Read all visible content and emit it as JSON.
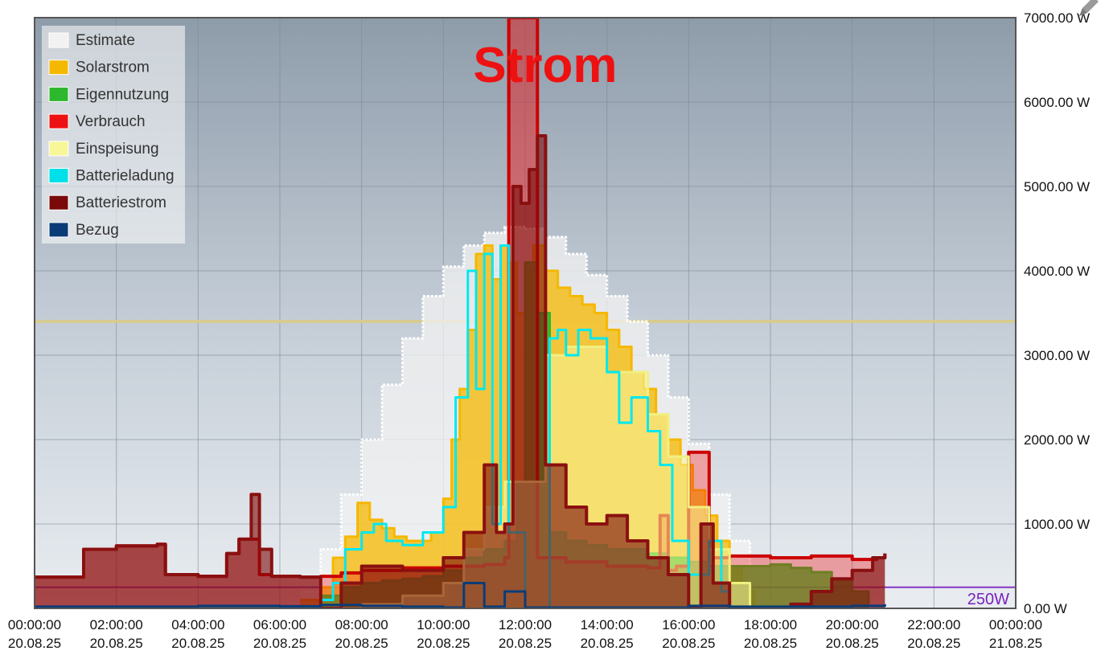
{
  "chart_data": {
    "type": "area",
    "title": "Strom",
    "title_color": "#ee1111",
    "xlabel": "",
    "ylabel": "",
    "ylim": [
      0,
      7000
    ],
    "xlim": [
      0,
      24
    ],
    "grid": true,
    "legend_position": "top-left",
    "y_ticks": [
      "0.00 W",
      "1000.00 W",
      "2000.00 W",
      "3000.00 W",
      "4000.00 W",
      "5000.00 W",
      "6000.00 W",
      "7000.00 W"
    ],
    "y_tick_values": [
      0,
      1000,
      2000,
      3000,
      4000,
      5000,
      6000,
      7000
    ],
    "x_ticks": [
      {
        "time": "00:00:00",
        "date": "20.08.25"
      },
      {
        "time": "02:00:00",
        "date": "20.08.25"
      },
      {
        "time": "04:00:00",
        "date": "20.08.25"
      },
      {
        "time": "06:00:00",
        "date": "20.08.25"
      },
      {
        "time": "08:00:00",
        "date": "20.08.25"
      },
      {
        "time": "10:00:00",
        "date": "20.08.25"
      },
      {
        "time": "12:00:00",
        "date": "20.08.25"
      },
      {
        "time": "14:00:00",
        "date": "20.08.25"
      },
      {
        "time": "16:00:00",
        "date": "20.08.25"
      },
      {
        "time": "18:00:00",
        "date": "20.08.25"
      },
      {
        "time": "20:00:00",
        "date": "20.08.25"
      },
      {
        "time": "22:00:00",
        "date": "20.08.25"
      },
      {
        "time": "00:00:00",
        "date": "21.08.25"
      }
    ],
    "reference_lines": [
      {
        "label": "250W",
        "value": 250,
        "color": "#7a22c0"
      },
      {
        "label": "",
        "value": 3400,
        "color": "#d8cc8a"
      }
    ],
    "highlight_band": {
      "from": 11.55,
      "to": 12.3,
      "color": "#ee1111"
    },
    "series": [
      {
        "name": "Estimate",
        "color": "#f2f2f2",
        "stroke": "#ffffff",
        "x": [
          6.5,
          7.0,
          7.5,
          8.0,
          8.5,
          9.0,
          9.5,
          10.0,
          10.5,
          11.0,
          11.5,
          12.0,
          12.5,
          13.0,
          13.5,
          14.0,
          14.5,
          15.0,
          15.5,
          16.0,
          16.5,
          17.0,
          17.5
        ],
        "y": [
          200,
          700,
          1350,
          2000,
          2650,
          3200,
          3700,
          4050,
          4300,
          4450,
          4520,
          4500,
          4400,
          4200,
          3950,
          3700,
          3400,
          3000,
          2500,
          1950,
          1350,
          800,
          250
        ]
      },
      {
        "name": "Solarstrom",
        "color": "#f5b800",
        "stroke": "#f5b800",
        "x": [
          6.5,
          7.0,
          7.3,
          7.6,
          7.9,
          8.2,
          8.5,
          8.8,
          9.1,
          9.4,
          9.7,
          10.0,
          10.2,
          10.4,
          10.6,
          10.8,
          11.0,
          11.2,
          11.4,
          11.6,
          11.8,
          12.0,
          12.2,
          12.5,
          12.8,
          13.1,
          13.4,
          13.7,
          14.0,
          14.3,
          14.6,
          14.9,
          15.2,
          15.5,
          15.8,
          16.1,
          16.4,
          16.7,
          17.0,
          17.3,
          17.6
        ],
        "y": [
          100,
          250,
          600,
          850,
          1250,
          1050,
          950,
          850,
          800,
          800,
          900,
          1300,
          2000,
          2600,
          3300,
          4200,
          4300,
          3900,
          4300,
          4100,
          3500,
          4000,
          4300,
          4000,
          3800,
          3700,
          3600,
          3500,
          3300,
          3100,
          2800,
          2600,
          2300,
          2000,
          1700,
          1400,
          1100,
          800,
          500,
          200,
          0
        ]
      },
      {
        "name": "Eigennutzung",
        "color": "#2db82d",
        "stroke": "#2db82d",
        "x": [
          6.5,
          7.0,
          7.5,
          8.0,
          8.5,
          9.0,
          9.5,
          10.0,
          10.5,
          11.0,
          11.5,
          11.8,
          12.0,
          12.3,
          12.6,
          13.0,
          13.5,
          14.0,
          14.5,
          15.0,
          15.5,
          16.0,
          16.5,
          17.0,
          17.5,
          18.0,
          18.5,
          19.0,
          19.5,
          20.0,
          20.4
        ],
        "y": [
          0,
          150,
          250,
          300,
          330,
          350,
          380,
          450,
          600,
          700,
          800,
          1500,
          4100,
          3500,
          900,
          800,
          750,
          700,
          700,
          650,
          600,
          550,
          500,
          500,
          500,
          520,
          480,
          430,
          350,
          200,
          50
        ]
      },
      {
        "name": "Verbrauch",
        "color": "#ee1111",
        "stroke": "#cc0000",
        "x": [
          0.0,
          1.0,
          1.2,
          2.0,
          3.0,
          3.2,
          4.0,
          4.7,
          5.0,
          5.5,
          5.8,
          6.5,
          7.0,
          7.5,
          8.0,
          9.0,
          10.0,
          11.0,
          11.5,
          11.6,
          12.2,
          12.3,
          13.0,
          14.0,
          15.0,
          15.3,
          15.5,
          15.7,
          16.0,
          16.3,
          16.5,
          16.6,
          17.0,
          18.0,
          19.0,
          20.0,
          20.6,
          20.8
        ],
        "y": [
          370,
          370,
          700,
          740,
          760,
          400,
          380,
          650,
          820,
          400,
          380,
          370,
          380,
          420,
          450,
          480,
          500,
          520,
          600,
          7000,
          7000,
          600,
          550,
          500,
          480,
          1100,
          450,
          500,
          1850,
          1850,
          500,
          600,
          620,
          600,
          620,
          580,
          600,
          650
        ]
      },
      {
        "name": "Einspeisung",
        "color": "#f7f79a",
        "stroke": "#f0f080",
        "x": [
          7.0,
          8.0,
          9.0,
          10.0,
          10.5,
          11.0,
          11.5,
          12.5,
          13.0,
          14.0,
          15.0,
          15.5,
          16.0,
          16.5,
          17.0,
          17.5
        ],
        "y": [
          0,
          50,
          150,
          300,
          700,
          1200,
          1500,
          3000,
          3100,
          2800,
          2300,
          1800,
          1200,
          700,
          300,
          0
        ]
      },
      {
        "name": "Batterieladung",
        "color": "#00e0e8",
        "stroke": "#00e8f0",
        "x": [
          0.0,
          6.5,
          7.0,
          7.3,
          7.6,
          8.0,
          8.3,
          8.6,
          9.0,
          9.5,
          10.0,
          10.3,
          10.6,
          10.8,
          11.0,
          11.2,
          11.4,
          11.6,
          12.0,
          12.4,
          12.6,
          12.8,
          13.0,
          13.3,
          13.6,
          14.0,
          14.3,
          14.6,
          15.0,
          15.3,
          15.6,
          16.0,
          16.5,
          16.8,
          17.0
        ],
        "y": [
          0,
          0,
          100,
          300,
          700,
          900,
          1000,
          800,
          750,
          900,
          1200,
          2500,
          4000,
          2600,
          4200,
          1000,
          4300,
          900,
          0,
          0,
          3200,
          3300,
          3000,
          3300,
          3200,
          2800,
          2200,
          2500,
          2100,
          1700,
          800,
          400,
          800,
          200,
          0
        ]
      },
      {
        "name": "Batteriestrom",
        "color": "#7a0a0a",
        "stroke": "#8a1010",
        "x": [
          0.0,
          1.0,
          1.2,
          2.0,
          3.0,
          3.2,
          4.0,
          4.7,
          5.0,
          5.3,
          5.5,
          5.8,
          6.5,
          7.0,
          7.5,
          8.0,
          9.0,
          10.0,
          10.5,
          11.0,
          11.3,
          11.5,
          11.7,
          11.9,
          12.1,
          12.3,
          12.5,
          13.0,
          13.5,
          14.0,
          14.5,
          15.0,
          15.5,
          16.0,
          16.3,
          16.6,
          17.0,
          18.0,
          18.5,
          19.0,
          19.5,
          20.0,
          20.5,
          20.8
        ],
        "y": [
          370,
          370,
          700,
          740,
          760,
          400,
          380,
          650,
          820,
          1350,
          700,
          380,
          370,
          0,
          300,
          500,
          450,
          600,
          900,
          1700,
          900,
          1000,
          5000,
          4800,
          5200,
          5600,
          1700,
          1200,
          1000,
          1100,
          800,
          600,
          400,
          0,
          1000,
          300,
          0,
          0,
          50,
          200,
          350,
          450,
          600,
          650
        ]
      },
      {
        "name": "Bezug",
        "color": "#0a3c78",
        "stroke": "#0a3c78",
        "x": [
          0.0,
          2.0,
          4.0,
          6.0,
          7.0,
          8.0,
          9.0,
          10.0,
          10.5,
          11.0,
          11.5,
          12.0,
          13.0,
          14.0,
          15.0,
          16.0,
          17.0,
          18.0,
          19.0,
          20.0,
          20.8
        ],
        "y": [
          20,
          20,
          30,
          25,
          40,
          30,
          20,
          10,
          300,
          20,
          200,
          10,
          10,
          10,
          10,
          30,
          20,
          20,
          20,
          30,
          50
        ]
      }
    ]
  }
}
